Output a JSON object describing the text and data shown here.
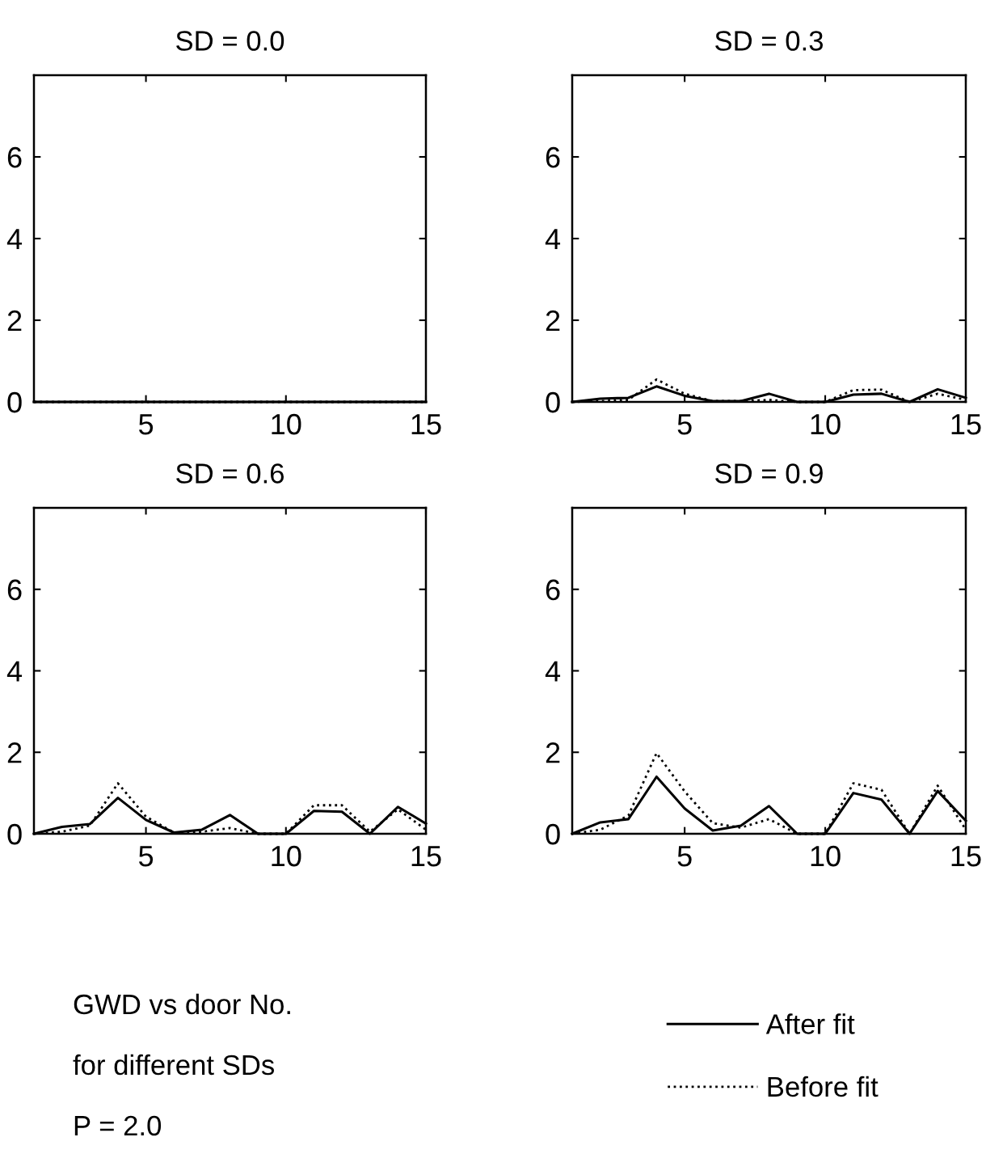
{
  "chart_data": [
    {
      "type": "line",
      "title": "SD = 0.0",
      "x": [
        1,
        2,
        3,
        4,
        5,
        6,
        7,
        8,
        9,
        10,
        11,
        12,
        13,
        14,
        15
      ],
      "xlim": [
        1,
        15
      ],
      "xticks": [
        5,
        10,
        15
      ],
      "ylim": [
        0,
        8
      ],
      "yticks": [
        0,
        2,
        4,
        6
      ],
      "grid": false,
      "legend": "bottom",
      "series": [
        {
          "name": "After fit",
          "color": "#000000",
          "line_style": "solid",
          "values": [
            0,
            0,
            0,
            0,
            0,
            0,
            0,
            0,
            0,
            0,
            0,
            0,
            0,
            0,
            0
          ]
        },
        {
          "name": "Before fit",
          "color": "#000000",
          "line_style": "dotted",
          "values": [
            0,
            0,
            0,
            0,
            0,
            0,
            0,
            0,
            0,
            0,
            0,
            0,
            0,
            0,
            0
          ]
        }
      ],
      "annotations": [
        "GWD vs door No.",
        "for different SDs",
        "P = 2.0"
      ]
    },
    {
      "type": "line",
      "title": "SD = 0.3",
      "x": [
        1,
        2,
        3,
        4,
        5,
        6,
        7,
        8,
        9,
        10,
        11,
        12,
        13,
        14,
        15
      ],
      "xlim": [
        1,
        15
      ],
      "xticks": [
        5,
        10,
        15
      ],
      "ylim": [
        0,
        8
      ],
      "yticks": [
        0,
        2,
        4,
        6
      ],
      "grid": false,
      "series": [
        {
          "color": "#000000",
          "line_style": "solid",
          "values": [
            0,
            0.08,
            0.1,
            0.38,
            0.15,
            0.02,
            0.02,
            0.2,
            0,
            0,
            0.18,
            0.2,
            0,
            0.31,
            0.1
          ]
        },
        {
          "color": "#000000",
          "line_style": "dotted",
          "values": [
            0,
            0.02,
            0.05,
            0.55,
            0.2,
            0.02,
            0.02,
            0.05,
            0,
            0,
            0.29,
            0.3,
            0,
            0.2,
            0.05
          ]
        }
      ]
    },
    {
      "type": "line",
      "title": "SD = 0.6",
      "x": [
        1,
        2,
        3,
        4,
        5,
        6,
        7,
        8,
        9,
        10,
        11,
        12,
        13,
        14,
        15
      ],
      "xlim": [
        1,
        15
      ],
      "xticks": [
        5,
        10,
        15
      ],
      "ylim": [
        0,
        8
      ],
      "yticks": [
        0,
        2,
        4,
        6
      ],
      "grid": false,
      "series": [
        {
          "color": "#000000",
          "line_style": "solid",
          "values": [
            0,
            0.17,
            0.24,
            0.88,
            0.34,
            0.03,
            0.1,
            0.46,
            0,
            0,
            0.56,
            0.54,
            0,
            0.66,
            0.25
          ]
        },
        {
          "color": "#000000",
          "line_style": "dotted",
          "values": [
            0,
            0.05,
            0.2,
            1.24,
            0.42,
            0.03,
            0.05,
            0.14,
            0,
            0,
            0.7,
            0.7,
            0.05,
            0.6,
            0.1
          ]
        }
      ]
    },
    {
      "type": "line",
      "title": "SD = 0.9",
      "x": [
        1,
        2,
        3,
        4,
        5,
        6,
        7,
        8,
        9,
        10,
        11,
        12,
        13,
        14,
        15
      ],
      "xlim": [
        1,
        15
      ],
      "xticks": [
        5,
        10,
        15
      ],
      "ylim": [
        0,
        8
      ],
      "yticks": [
        0,
        2,
        4,
        6
      ],
      "grid": false,
      "series": [
        {
          "color": "#000000",
          "line_style": "solid",
          "values": [
            0,
            0.28,
            0.36,
            1.4,
            0.62,
            0.08,
            0.2,
            0.68,
            0,
            0,
            1.0,
            0.84,
            0,
            1.05,
            0.32
          ]
        },
        {
          "color": "#000000",
          "line_style": "dotted",
          "values": [
            0,
            0.1,
            0.45,
            1.98,
            1.04,
            0.26,
            0.15,
            0.36,
            0,
            0,
            1.24,
            1.08,
            0,
            1.18,
            0.1
          ]
        }
      ]
    }
  ]
}
